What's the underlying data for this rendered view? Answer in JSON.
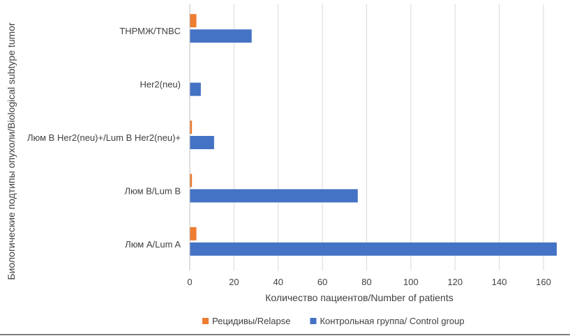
{
  "chart_data": {
    "type": "bar",
    "orientation": "horizontal",
    "categories": [
      "ТНРМЖ/TNBC",
      "Her2(neu)",
      "Люм В Her2(neu)+/Lum B Her2(neu)+",
      "Люм В/Lum B",
      "Люм А/Lum A"
    ],
    "series": [
      {
        "name": "Рецидивы/Relapse",
        "color": "#ED7D31",
        "values": [
          3,
          0,
          1,
          1,
          3
        ]
      },
      {
        "name": "Контрольная группа/ Control group",
        "color": "#4472C4",
        "values": [
          28,
          5,
          11,
          76,
          166
        ]
      }
    ],
    "xlabel": "Количество пациентов/Number of patients",
    "ylabel": "Биологические подтипы опухоли/Biological subtype tumor",
    "xlim": [
      0,
      166
    ],
    "xticks": [
      0,
      20,
      40,
      60,
      80,
      100,
      120,
      140,
      160
    ],
    "grid": "vertical",
    "legend_position": "bottom"
  }
}
